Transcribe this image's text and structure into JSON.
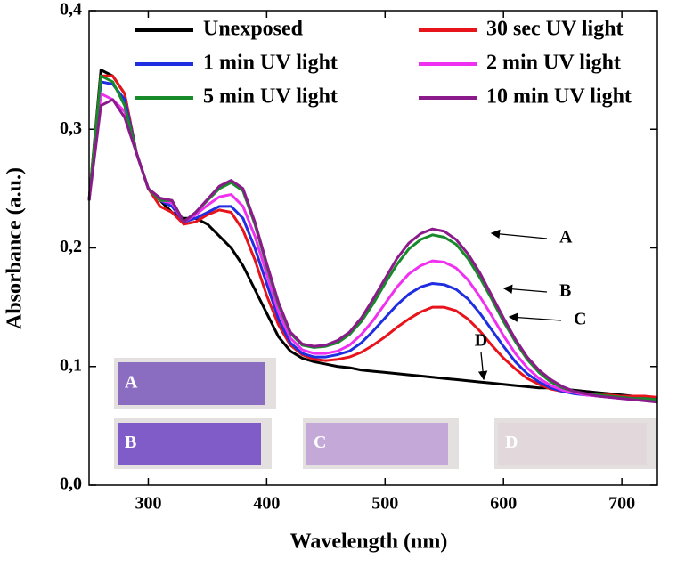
{
  "chart_data": {
    "type": "line",
    "x_label": "Wavelength (nm)",
    "y_label": "Absorbance (a.u.)",
    "xlim": [
      250,
      730
    ],
    "ylim": [
      0,
      0.4
    ],
    "xticks": [
      300,
      400,
      500,
      600,
      700
    ],
    "yticks": [
      {
        "value": 0,
        "label": "0,0"
      },
      {
        "value": 0.1,
        "label": "0,1"
      },
      {
        "value": 0.2,
        "label": "0,2"
      },
      {
        "value": 0.3,
        "label": "0,3"
      },
      {
        "value": 0.4,
        "label": "0,4"
      }
    ],
    "x": [
      250,
      260,
      270,
      280,
      290,
      300,
      310,
      320,
      330,
      340,
      350,
      360,
      370,
      380,
      390,
      400,
      410,
      420,
      430,
      440,
      450,
      460,
      470,
      480,
      490,
      500,
      510,
      520,
      530,
      540,
      550,
      560,
      570,
      580,
      590,
      600,
      610,
      620,
      630,
      640,
      650,
      660,
      670,
      680,
      690,
      700,
      710,
      720,
      730
    ],
    "series": [
      {
        "name": "Unexposed",
        "color": "#000000",
        "values": [
          0.24,
          0.35,
          0.345,
          0.33,
          0.28,
          0.25,
          0.24,
          0.23,
          0.225,
          0.225,
          0.22,
          0.21,
          0.2,
          0.185,
          0.165,
          0.145,
          0.125,
          0.113,
          0.107,
          0.104,
          0.102,
          0.1,
          0.099,
          0.097,
          0.096,
          0.095,
          0.094,
          0.093,
          0.092,
          0.091,
          0.09,
          0.089,
          0.088,
          0.087,
          0.086,
          0.085,
          0.084,
          0.083,
          0.082,
          0.082,
          0.081,
          0.08,
          0.079,
          0.078,
          0.077,
          0.076,
          0.075,
          0.074,
          0.073
        ]
      },
      {
        "name": "30 sec UV light",
        "color": "#e8141c",
        "values": [
          0.24,
          0.345,
          0.345,
          0.33,
          0.28,
          0.25,
          0.235,
          0.23,
          0.22,
          0.222,
          0.228,
          0.232,
          0.23,
          0.215,
          0.19,
          0.16,
          0.135,
          0.118,
          0.11,
          0.106,
          0.105,
          0.106,
          0.108,
          0.112,
          0.118,
          0.125,
          0.133,
          0.14,
          0.146,
          0.15,
          0.15,
          0.147,
          0.14,
          0.13,
          0.118,
          0.107,
          0.098,
          0.09,
          0.085,
          0.081,
          0.079,
          0.078,
          0.077,
          0.076,
          0.076,
          0.075,
          0.075,
          0.075,
          0.074
        ]
      },
      {
        "name": "1 min UV light",
        "color": "#1f2ee0",
        "values": [
          0.24,
          0.34,
          0.338,
          0.325,
          0.28,
          0.25,
          0.24,
          0.235,
          0.222,
          0.225,
          0.23,
          0.235,
          0.235,
          0.225,
          0.2,
          0.17,
          0.14,
          0.12,
          0.111,
          0.108,
          0.108,
          0.11,
          0.113,
          0.12,
          0.13,
          0.141,
          0.152,
          0.161,
          0.167,
          0.17,
          0.169,
          0.165,
          0.157,
          0.145,
          0.131,
          0.117,
          0.104,
          0.094,
          0.087,
          0.082,
          0.079,
          0.077,
          0.076,
          0.075,
          0.074,
          0.074,
          0.073,
          0.073,
          0.072
        ]
      },
      {
        "name": "2 min UV light",
        "color": "#f030f0",
        "values": [
          0.24,
          0.33,
          0.325,
          0.315,
          0.28,
          0.25,
          0.24,
          0.238,
          0.222,
          0.228,
          0.236,
          0.243,
          0.245,
          0.235,
          0.21,
          0.178,
          0.146,
          0.124,
          0.114,
          0.111,
          0.111,
          0.113,
          0.118,
          0.127,
          0.139,
          0.153,
          0.167,
          0.178,
          0.185,
          0.189,
          0.188,
          0.183,
          0.173,
          0.159,
          0.143,
          0.126,
          0.111,
          0.099,
          0.09,
          0.084,
          0.08,
          0.078,
          0.076,
          0.075,
          0.074,
          0.073,
          0.072,
          0.072,
          0.071
        ]
      },
      {
        "name": "5 min UV light",
        "color": "#178a2a",
        "values": [
          0.24,
          0.345,
          0.34,
          0.32,
          0.28,
          0.25,
          0.24,
          0.24,
          0.222,
          0.23,
          0.24,
          0.25,
          0.255,
          0.248,
          0.22,
          0.185,
          0.152,
          0.128,
          0.118,
          0.116,
          0.117,
          0.12,
          0.127,
          0.138,
          0.153,
          0.17,
          0.186,
          0.199,
          0.207,
          0.211,
          0.209,
          0.203,
          0.191,
          0.175,
          0.157,
          0.138,
          0.121,
          0.106,
          0.095,
          0.087,
          0.082,
          0.079,
          0.077,
          0.076,
          0.075,
          0.074,
          0.073,
          0.073,
          0.072
        ]
      },
      {
        "name": "10 min UV light",
        "color": "#8b1a8b",
        "values": [
          0.24,
          0.32,
          0.325,
          0.31,
          0.28,
          0.25,
          0.242,
          0.24,
          0.222,
          0.23,
          0.241,
          0.252,
          0.257,
          0.25,
          0.222,
          0.187,
          0.154,
          0.129,
          0.119,
          0.117,
          0.118,
          0.122,
          0.129,
          0.141,
          0.157,
          0.174,
          0.191,
          0.204,
          0.212,
          0.216,
          0.214,
          0.207,
          0.195,
          0.179,
          0.16,
          0.141,
          0.123,
          0.108,
          0.097,
          0.089,
          0.083,
          0.079,
          0.077,
          0.075,
          0.074,
          0.073,
          0.072,
          0.071,
          0.07
        ]
      }
    ],
    "annotations": [
      "A",
      "B",
      "C",
      "D"
    ],
    "inset_labels": [
      "A",
      "B",
      "C",
      "D"
    ]
  }
}
